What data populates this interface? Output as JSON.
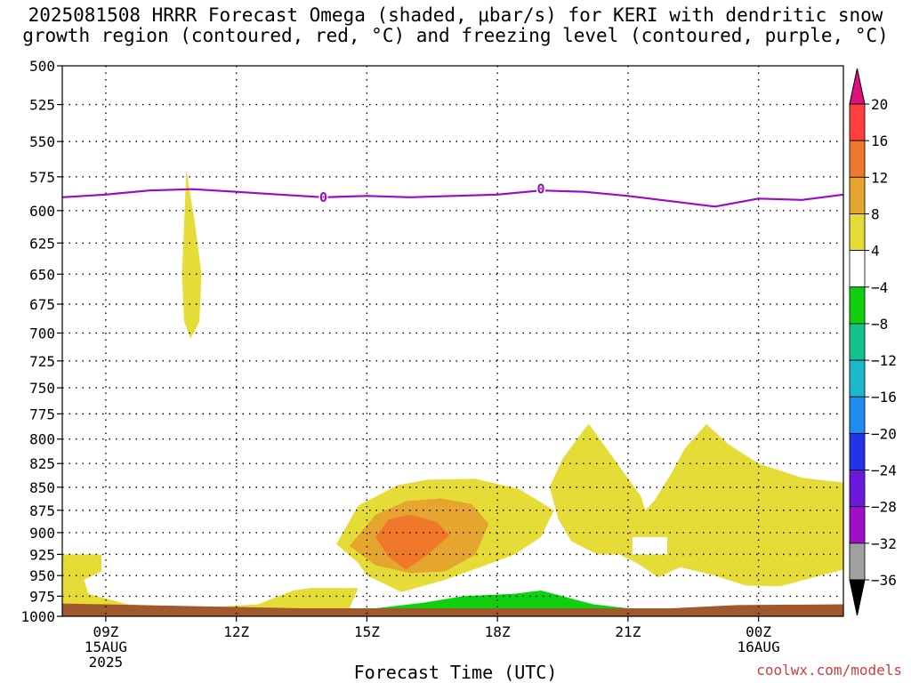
{
  "title": {
    "line1": "2025081508 HRRR Forecast Omega (shaded, μbar/s) for KERI with dendritic snow",
    "line2": "growth region (contoured, red, °C) and freezing level (contoured, purple, °C)"
  },
  "watermark": "coolwx.com/models",
  "chart_data": {
    "type": "time-height cross section",
    "title": "2025081508 HRRR Forecast Omega (shaded, μbar/s) for KERI with dendritic snow growth region (contoured, red, °C) and freezing level (contoured, purple, °C)",
    "xlabel": "Forecast Time (UTC)",
    "ylabel": "",
    "y_reversed": true,
    "ylim": [
      1000,
      500
    ],
    "xlim": [
      8,
      25.95
    ],
    "y_ticks": [
      500,
      525,
      550,
      575,
      600,
      625,
      650,
      675,
      700,
      725,
      750,
      775,
      800,
      825,
      850,
      875,
      900,
      925,
      950,
      975,
      1000
    ],
    "x_ticks": [
      {
        "x": 9,
        "label": "09Z",
        "sub": [
          "15AUG",
          "2025"
        ]
      },
      {
        "x": 12,
        "label": "12Z",
        "sub": []
      },
      {
        "x": 15,
        "label": "15Z",
        "sub": []
      },
      {
        "x": 18,
        "label": "18Z",
        "sub": []
      },
      {
        "x": 21,
        "label": "21Z",
        "sub": []
      },
      {
        "x": 24,
        "label": "00Z",
        "sub": [
          "16AUG"
        ]
      }
    ],
    "grid": true,
    "colorbar": {
      "labels": [
        "20",
        "16",
        "12",
        "8",
        "4",
        "-4",
        "-8",
        "-12",
        "-16",
        "-20",
        "-24",
        "-28",
        "-32",
        "-36"
      ],
      "bands": [
        {
          "color": "#ff3f3f"
        },
        {
          "color": "#f0782a"
        },
        {
          "color": "#e5a52e"
        },
        {
          "color": "#e6dc38"
        },
        {
          "color": "#ffffff"
        },
        {
          "color": "#0fcf0f"
        },
        {
          "color": "#12c28a"
        },
        {
          "color": "#1ab8c8"
        },
        {
          "color": "#1e8cf0"
        },
        {
          "color": "#2233e8"
        },
        {
          "color": "#6a1ad8"
        },
        {
          "color": "#a10ec8"
        },
        {
          "color": "#a0a0a0"
        }
      ],
      "top_arrow_color": "#e0107c",
      "bottom_arrow_color": "#000000"
    },
    "freezing_level": {
      "color": "#9a0ac8",
      "label": "0",
      "label_at": [
        [
          14.0,
          590
        ],
        [
          19.0,
          584
        ]
      ],
      "points": [
        [
          8,
          590
        ],
        [
          9,
          588
        ],
        [
          10,
          585
        ],
        [
          11,
          584
        ],
        [
          12,
          586
        ],
        [
          13,
          588
        ],
        [
          14,
          590
        ],
        [
          15,
          589
        ],
        [
          16,
          590
        ],
        [
          17,
          589
        ],
        [
          18,
          588
        ],
        [
          19,
          585
        ],
        [
          20,
          586
        ],
        [
          21,
          589
        ],
        [
          22,
          593
        ],
        [
          23,
          597
        ],
        [
          24,
          591
        ],
        [
          25,
          592
        ],
        [
          25.95,
          588
        ]
      ]
    },
    "shaded_regions": [
      {
        "level": "4 to 8",
        "color": "#e6dc38",
        "points": [
          [
            10.85,
            570
          ],
          [
            11.05,
            610
          ],
          [
            11.2,
            650
          ],
          [
            11.15,
            690
          ],
          [
            10.95,
            705
          ],
          [
            10.8,
            690
          ],
          [
            10.75,
            650
          ],
          [
            10.8,
            610
          ]
        ]
      },
      {
        "level": "4 to 8",
        "color": "#e6dc38",
        "points": [
          [
            8,
            925
          ],
          [
            8.9,
            925
          ],
          [
            8.9,
            945
          ],
          [
            8.5,
            955
          ],
          [
            8.6,
            972
          ],
          [
            9.5,
            985
          ],
          [
            11,
            990
          ],
          [
            12.5,
            985
          ],
          [
            13.3,
            968
          ],
          [
            13.7,
            965
          ],
          [
            14.8,
            965
          ],
          [
            14.6,
            990
          ],
          [
            14.0,
            997
          ],
          [
            8,
            997
          ]
        ]
      },
      {
        "level": "4 to 8",
        "color": "#e6dc38",
        "points": [
          [
            14.3,
            913
          ],
          [
            14.8,
            870
          ],
          [
            15.7,
            848
          ],
          [
            16.4,
            842
          ],
          [
            17.5,
            841
          ],
          [
            18.5,
            852
          ],
          [
            19.3,
            875
          ],
          [
            19.0,
            905
          ],
          [
            18.4,
            925
          ],
          [
            17.5,
            942
          ],
          [
            16.8,
            955
          ],
          [
            15.8,
            970
          ],
          [
            15.0,
            950
          ],
          [
            14.8,
            935
          ]
        ]
      },
      {
        "level": "8 to 12",
        "color": "#e5a52e",
        "points": [
          [
            14.6,
            915
          ],
          [
            15.2,
            880
          ],
          [
            15.9,
            865
          ],
          [
            16.7,
            862
          ],
          [
            17.4,
            868
          ],
          [
            17.8,
            890
          ],
          [
            17.5,
            925
          ],
          [
            16.8,
            945
          ],
          [
            16.0,
            947
          ],
          [
            15.2,
            938
          ]
        ]
      },
      {
        "level": "12 to 16",
        "color": "#f0782a",
        "points": [
          [
            15.2,
            905
          ],
          [
            15.5,
            885
          ],
          [
            16.0,
            880
          ],
          [
            16.6,
            888
          ],
          [
            16.9,
            903
          ],
          [
            16.4,
            925
          ],
          [
            15.9,
            943
          ],
          [
            15.5,
            928
          ]
        ]
      },
      {
        "level": "4 to 8",
        "color": "#e6dc38",
        "points": [
          [
            19.2,
            850
          ],
          [
            19.5,
            820
          ],
          [
            20.0,
            790
          ],
          [
            20.1,
            785
          ],
          [
            20.8,
            828
          ],
          [
            21.3,
            860
          ],
          [
            21.4,
            875
          ],
          [
            21.6,
            865
          ],
          [
            22.0,
            835
          ],
          [
            22.3,
            810
          ],
          [
            22.8,
            785
          ],
          [
            23.3,
            805
          ],
          [
            24.0,
            825
          ],
          [
            25.0,
            840
          ],
          [
            25.95,
            845
          ],
          [
            25.95,
            943
          ],
          [
            25.2,
            953
          ],
          [
            24.5,
            963
          ],
          [
            23.7,
            962
          ],
          [
            23.0,
            950
          ],
          [
            22.2,
            940
          ],
          [
            21.7,
            952
          ],
          [
            21.2,
            935
          ],
          [
            20.8,
            925
          ],
          [
            20.3,
            925
          ],
          [
            19.7,
            910
          ],
          [
            19.4,
            885
          ]
        ]
      },
      {
        "level": "-4 to 4 (hole)",
        "color": "#ffffff",
        "points": [
          [
            21.1,
            905
          ],
          [
            21.9,
            905
          ],
          [
            21.9,
            925
          ],
          [
            21.1,
            925
          ]
        ]
      },
      {
        "level": "-8 to -4",
        "color": "#0fcf0f",
        "points": [
          [
            14.35,
            996
          ],
          [
            15.2,
            990
          ],
          [
            16.3,
            983
          ],
          [
            17.2,
            975
          ],
          [
            18.4,
            972
          ],
          [
            19.0,
            968
          ],
          [
            19.5,
            975
          ],
          [
            20.2,
            985
          ],
          [
            21.0,
            990
          ],
          [
            22.0,
            996
          ]
        ]
      }
    ],
    "surface_bar": {
      "color": "#a0582c",
      "from_pressure": 988,
      "to_pressure": 1000
    },
    "surface_bar_extra": [
      [
        8,
        984
      ],
      [
        13.5,
        990
      ],
      [
        22,
        990
      ],
      [
        23.5,
        986
      ],
      [
        25.95,
        985
      ]
    ]
  }
}
